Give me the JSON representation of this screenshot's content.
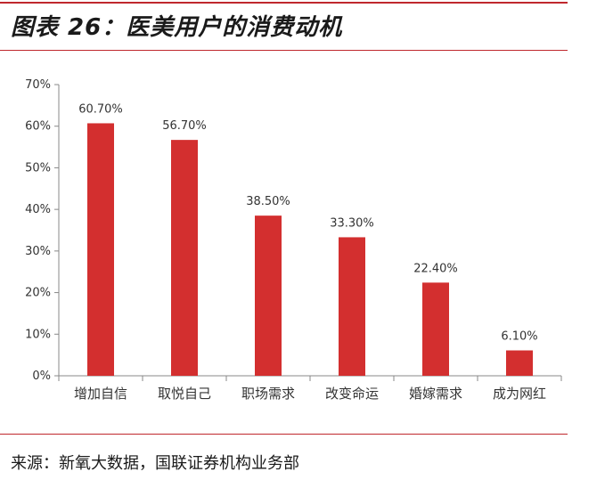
{
  "figure": {
    "title": "图表 26：医美用户的消费动机",
    "source": "来源：新氧大数据，国联证券机构业务部"
  },
  "colors": {
    "bar": "#d32f2f",
    "accent_rule": "#c0282d",
    "axis": "#888888"
  },
  "chart_data": {
    "type": "bar",
    "categories": [
      "增加自信",
      "取悦自己",
      "职场需求",
      "改变命运",
      "婚嫁需求",
      "成为网红"
    ],
    "values": [
      60.7,
      56.7,
      38.5,
      33.3,
      22.4,
      6.1
    ],
    "data_labels": [
      "60.70%",
      "56.70%",
      "38.50%",
      "33.30%",
      "22.40%",
      "6.10%"
    ],
    "y_ticks": [
      0,
      10,
      20,
      30,
      40,
      50,
      60,
      70
    ],
    "y_tick_labels": [
      "0%",
      "10%",
      "20%",
      "30%",
      "40%",
      "50%",
      "60%",
      "70%"
    ],
    "ylim": [
      0,
      70
    ],
    "grid": false,
    "legend": "none",
    "title": "",
    "xlabel": "",
    "ylabel": ""
  }
}
